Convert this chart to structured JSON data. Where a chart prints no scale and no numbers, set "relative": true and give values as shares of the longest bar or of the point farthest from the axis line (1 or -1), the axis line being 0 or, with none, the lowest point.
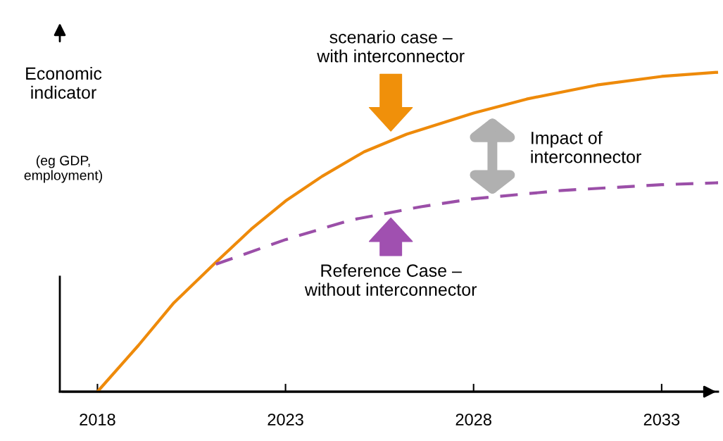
{
  "chart_data": {
    "type": "line",
    "relative": true,
    "ylabel": "Economic indicator",
    "xlim": [
      2017,
      2034.5
    ],
    "xticks": [
      2018,
      2023,
      2028,
      2033
    ],
    "grid": false,
    "series": [
      {
        "color": "#ee8a0a",
        "line_style": "solid",
        "x": [
          2018,
          2019.09,
          2020.03,
          2021.15,
          2022.09,
          2023.0,
          2023.97,
          2025.09,
          2026.22,
          2028.0,
          2029.41,
          2031.28,
          2033.0,
          2034.5
        ],
        "values": [
          0,
          0.145,
          0.278,
          0.405,
          0.509,
          0.597,
          0.674,
          0.751,
          0.806,
          0.872,
          0.916,
          0.96,
          0.987,
          1.0
        ]
      },
      {
        "color": "#9b4fa8",
        "line_style": "dashed",
        "x": [
          2021.15,
          2023.0,
          2024.72,
          2026.6,
          2028.0,
          2030.35,
          2033.0,
          2034.5
        ],
        "values": [
          0.399,
          0.476,
          0.537,
          0.579,
          0.604,
          0.63,
          0.648,
          0.654
        ]
      }
    ],
    "annotations": [
      "scenario case –\nwith interconnector",
      "Reference Case –\nwithout interconnector",
      "Impact of\ninterconnector",
      "(eg GDP,\nemployment)"
    ]
  }
}
